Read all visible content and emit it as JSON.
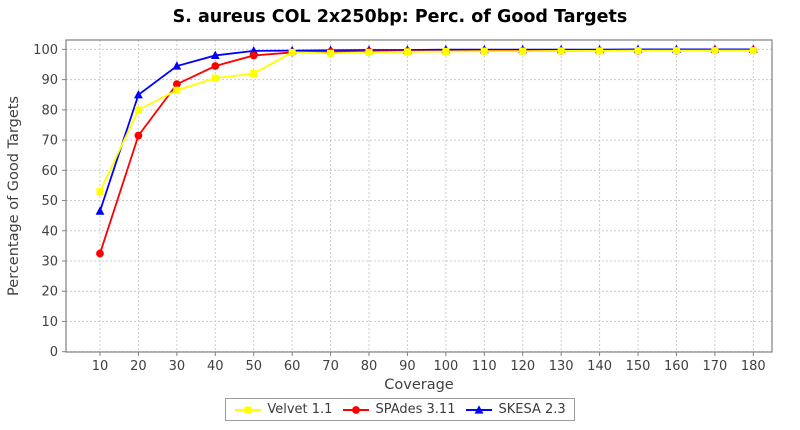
{
  "title": "S. aureus COL 2x250bp: Perc. of Good Targets",
  "chart_data": {
    "type": "line",
    "title": "S. aureus COL 2x250bp: Perc. of Good Targets",
    "xlabel": "Coverage",
    "ylabel": "Percentage of Good Targets",
    "x": [
      10,
      20,
      30,
      40,
      50,
      60,
      70,
      80,
      90,
      100,
      110,
      120,
      130,
      140,
      150,
      160,
      170,
      180
    ],
    "xticks": [
      10,
      20,
      30,
      40,
      50,
      60,
      70,
      80,
      90,
      100,
      110,
      120,
      130,
      140,
      150,
      160,
      170,
      180
    ],
    "yticks": [
      0,
      10,
      20,
      30,
      40,
      50,
      60,
      70,
      80,
      90,
      100
    ],
    "xlim": [
      1,
      185
    ],
    "ylim": [
      0,
      103
    ],
    "grid": true,
    "legend_position": "bottom",
    "series": [
      {
        "name": "Velvet 1.1",
        "color": "#FFFF00",
        "marker": "square",
        "values": [
          53,
          80,
          86.5,
          90.5,
          92,
          99,
          98.7,
          99,
          99.2,
          99.3,
          99.4,
          99.4,
          99.5,
          99.5,
          99.6,
          99.6,
          99.6,
          99.6
        ]
      },
      {
        "name": "SPAdes 3.11",
        "color": "#FF0000",
        "marker": "circle",
        "values": [
          32.5,
          71.5,
          88.5,
          94.5,
          98,
          99,
          99.2,
          99.3,
          99.4,
          99.4,
          99.5,
          99.5,
          99.5,
          99.6,
          99.6,
          99.6,
          99.7,
          99.7
        ]
      },
      {
        "name": "SKESA 2.3",
        "color": "#0000FF",
        "marker": "triangle",
        "values": [
          46.5,
          85,
          94.5,
          98,
          99.5,
          99.6,
          99.7,
          99.8,
          99.8,
          99.9,
          99.9,
          99.9,
          99.9,
          99.9,
          100,
          100,
          100,
          100
        ]
      }
    ],
    "colors": {
      "grid": "#cccccc",
      "plot_border": "#808080",
      "tick_text": "#404040",
      "title_text": "#000000"
    }
  }
}
